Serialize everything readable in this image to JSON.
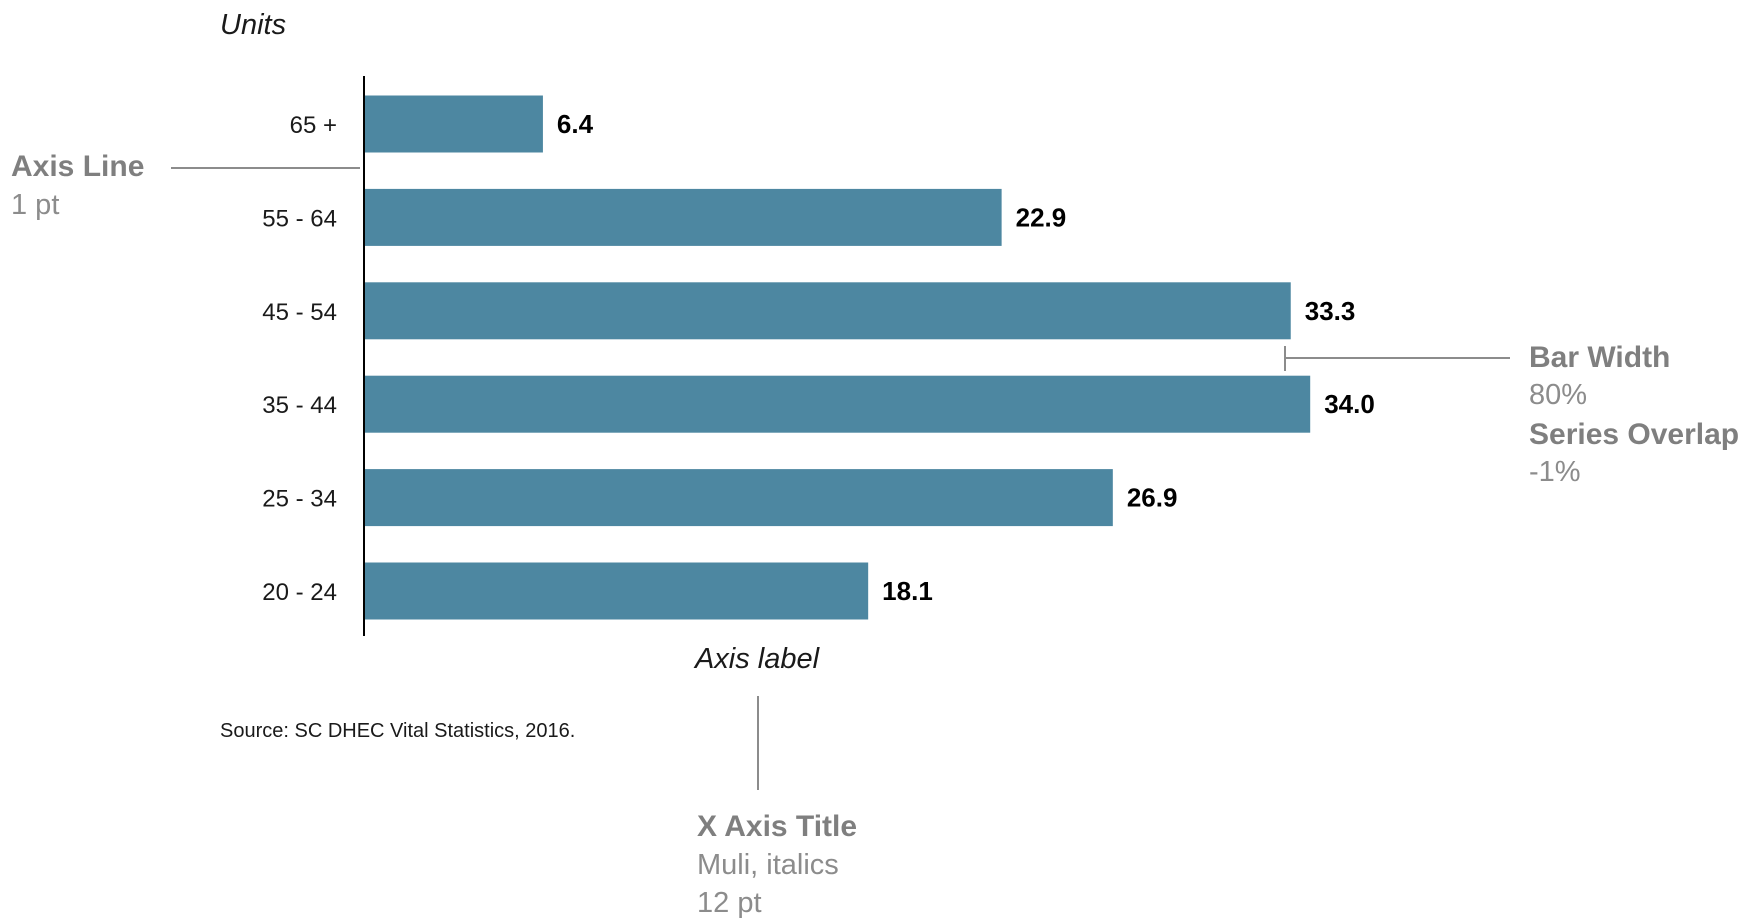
{
  "chart_data": {
    "type": "bar",
    "orientation": "horizontal",
    "categories": [
      "65 +",
      "55 - 64",
      "45 - 54",
      "35 - 44",
      "25 - 34",
      "20 - 24"
    ],
    "values": [
      6.4,
      22.9,
      33.3,
      34.0,
      26.9,
      18.1
    ],
    "value_labels": [
      "6.4",
      "22.9",
      "33.3",
      "34.0",
      "26.9",
      "18.1"
    ],
    "title": "",
    "ylabel": "Units",
    "xlabel": "Axis label",
    "xlim": [
      0,
      38
    ],
    "grid": false,
    "legend": "none",
    "bar_color": "#4d87a1",
    "source": "Source: SC DHEC Vital Statistics, 2016."
  },
  "annotations": {
    "axis_line": {
      "title": "Axis Line",
      "detail": "1 pt"
    },
    "bar_width": {
      "title": "Bar Width",
      "detail": "80%",
      "title2": "Series Overlap",
      "detail2": "-1%"
    },
    "x_axis_title": {
      "title": "X Axis Title",
      "detail": "Muli, italics",
      "detail2": "12 pt"
    }
  },
  "colors": {
    "annotation_text": "#7f7f7f",
    "annotation_line": "#8c8c8c",
    "axis": "#000000"
  }
}
